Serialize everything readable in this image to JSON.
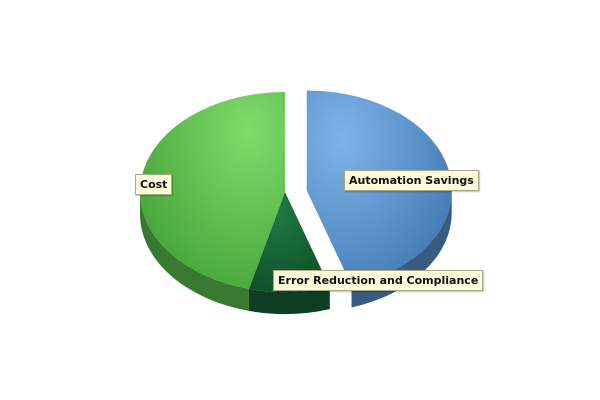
{
  "chart_data": {
    "type": "pie",
    "variant": "3d-exploded",
    "title": "",
    "legend": "none",
    "slices": [
      {
        "label": "Automation Savings",
        "value": 45,
        "color": "#5b93cf",
        "exploded": true
      },
      {
        "label": "Error Reduction and Compliance",
        "value": 9,
        "color": "#17663a",
        "exploded": false
      },
      {
        "label": "Cost",
        "value": 46,
        "color": "#5bc24f",
        "exploded": false
      }
    ]
  }
}
